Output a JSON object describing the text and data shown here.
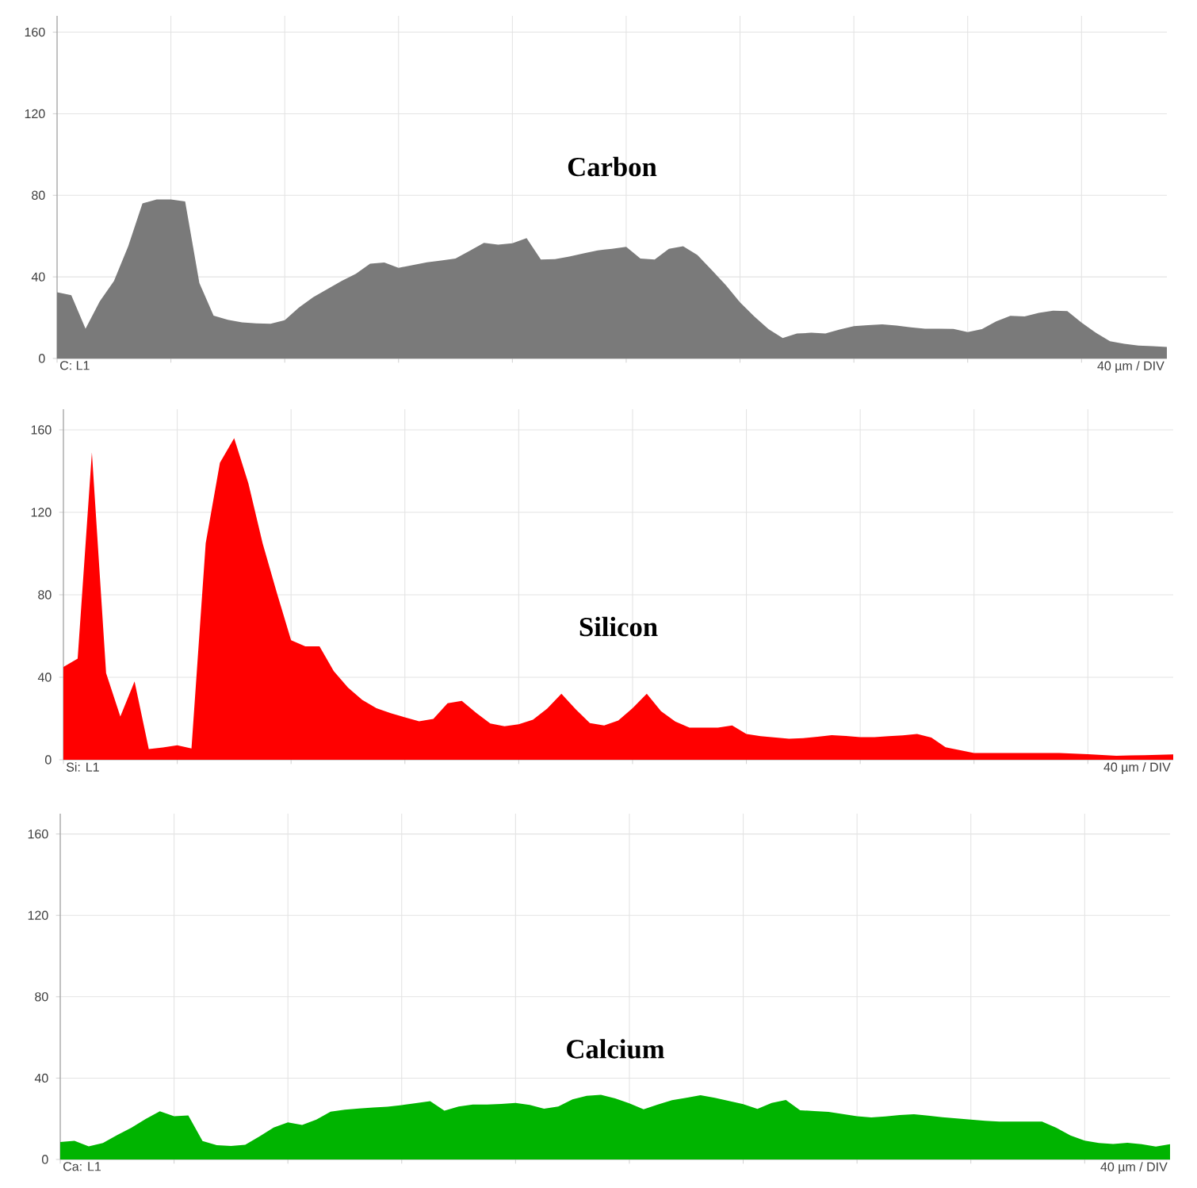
{
  "chart_data": [
    {
      "type": "area",
      "title": "Carbon",
      "color": "#7a7a7a",
      "ylim": [
        0,
        168
      ],
      "grid": true,
      "tick_labels": "y",
      "yticks": [
        0,
        40,
        80,
        120,
        160
      ],
      "annotations": [
        "C: L1",
        "40 µm / DIV"
      ],
      "categories": [
        null,
        null,
        null,
        null,
        null,
        null,
        null,
        null,
        null,
        null,
        null,
        null,
        null,
        null,
        null,
        null,
        null,
        null,
        null,
        null,
        null,
        null,
        null,
        null,
        null,
        null,
        null,
        null,
        null,
        null,
        null,
        null,
        null,
        null,
        null,
        null,
        null,
        null,
        null,
        null,
        null,
        null,
        null,
        null,
        null,
        null,
        null,
        null,
        null,
        null,
        null,
        null,
        null,
        null,
        null,
        null,
        null,
        null,
        null,
        null,
        null,
        null,
        null,
        null,
        null,
        null,
        null,
        null,
        null,
        null,
        null,
        null,
        null,
        null,
        null,
        null,
        null,
        null,
        null
      ],
      "values": [
        32.5,
        31,
        14.6,
        28,
        38,
        55,
        76,
        78,
        78,
        77,
        37,
        21,
        19,
        17.7,
        17.2,
        17,
        18.8,
        25,
        30,
        34,
        38,
        41.5,
        46.5,
        47,
        44.4,
        45.8,
        47.1,
        48,
        49,
        52.8,
        56.7,
        55.8,
        56.5,
        59,
        48.5,
        48.7,
        50,
        51.5,
        53,
        53.8,
        54.7,
        49,
        48.5,
        53.8,
        55,
        50.7,
        43.5,
        36,
        27.5,
        20.6,
        14.4,
        10,
        12.2,
        12.6,
        12.2,
        14.2,
        15.8,
        16.3,
        16.7,
        16.1,
        15.3,
        14.6,
        14.6,
        14.5,
        12.9,
        14.4,
        18.2,
        20.9,
        20.6,
        22.4,
        23.4,
        23.2,
        17.6,
        12.6,
        8.5,
        7.2,
        6.3,
        6.0,
        5.6
      ]
    },
    {
      "type": "area",
      "title": "Silicon",
      "color": "#ff0000",
      "ylim": [
        0,
        170
      ],
      "grid": true,
      "tick_labels": "y",
      "yticks": [
        0,
        40,
        80,
        120,
        160
      ],
      "annotations": [
        "Si: L1",
        "40 µm / DIV"
      ],
      "categories": [
        null,
        null,
        null,
        null,
        null,
        null,
        null,
        null,
        null,
        null,
        null,
        null,
        null,
        null,
        null,
        null,
        null,
        null,
        null,
        null,
        null,
        null,
        null,
        null,
        null,
        null,
        null,
        null,
        null,
        null,
        null,
        null,
        null,
        null,
        null,
        null,
        null,
        null,
        null,
        null,
        null,
        null,
        null,
        null,
        null,
        null,
        null,
        null,
        null,
        null,
        null,
        null,
        null,
        null,
        null,
        null,
        null,
        null,
        null,
        null,
        null,
        null,
        null,
        null,
        null,
        null,
        null,
        null,
        null,
        null,
        null,
        null,
        null,
        null,
        null,
        null,
        null,
        null,
        null
      ],
      "values": [
        45,
        49,
        149,
        42,
        21,
        38,
        5.2,
        6,
        7,
        5.5,
        105,
        144,
        156,
        134,
        105,
        81,
        58,
        55,
        55,
        43,
        35,
        29,
        25,
        22.6,
        20.6,
        18.7,
        19.8,
        27.4,
        28.6,
        22.8,
        17.6,
        16.2,
        17.2,
        19.4,
        24.8,
        32,
        24.5,
        17.8,
        16.6,
        19,
        25,
        32,
        23.6,
        18.6,
        15.6,
        15.6,
        15.6,
        16.6,
        12.5,
        11.4,
        10.8,
        10.2,
        10.5,
        11.2,
        11.9,
        11.5,
        11,
        11,
        11.4,
        11.8,
        12.5,
        10.8,
        6.1,
        4.7,
        3.3,
        3.3,
        3.3,
        3.3,
        3.3,
        3.3,
        3.3,
        3.0,
        2.7,
        2.3,
        1.9,
        2.1,
        2.2,
        2.4,
        2.6
      ]
    },
    {
      "type": "area",
      "title": "Calcium",
      "color": "#00b400",
      "ylim": [
        0,
        170
      ],
      "grid": true,
      "tick_labels": "y",
      "yticks": [
        0,
        40,
        80,
        120,
        160
      ],
      "annotations": [
        "Ca: L1",
        "40 µm / DIV"
      ],
      "categories": [
        null,
        null,
        null,
        null,
        null,
        null,
        null,
        null,
        null,
        null,
        null,
        null,
        null,
        null,
        null,
        null,
        null,
        null,
        null,
        null,
        null,
        null,
        null,
        null,
        null,
        null,
        null,
        null,
        null,
        null,
        null,
        null,
        null,
        null,
        null,
        null,
        null,
        null,
        null,
        null,
        null,
        null,
        null,
        null,
        null,
        null,
        null,
        null,
        null,
        null,
        null,
        null,
        null,
        null,
        null,
        null,
        null,
        null,
        null,
        null,
        null,
        null,
        null,
        null,
        null,
        null,
        null,
        null,
        null,
        null,
        null,
        null,
        null,
        null,
        null,
        null,
        null,
        null,
        null
      ],
      "values": [
        8.6,
        9.2,
        6.4,
        8.1,
        12,
        15.6,
        19.9,
        23.7,
        21.3,
        21.6,
        9.1,
        7,
        6.6,
        7.2,
        11.3,
        15.7,
        18.2,
        17,
        19.6,
        23.5,
        24.5,
        25.1,
        25.5,
        25.9,
        26.7,
        27.7,
        28.7,
        24,
        26,
        27,
        27,
        27.3,
        27.8,
        26.8,
        25,
        26,
        29.5,
        31.3,
        31.8,
        30,
        27.6,
        24.7,
        27,
        29.1,
        30.3,
        31.6,
        30.3,
        28.8,
        27.2,
        24.9,
        27.8,
        29.2,
        24.2,
        23.8,
        23.4,
        22.3,
        21.3,
        20.7,
        21.2,
        21.8,
        22.2,
        21.5,
        20.8,
        20.2,
        19.6,
        19,
        18.6,
        18.6,
        18.6,
        18.6,
        15.6,
        11.8,
        9.3,
        8.1,
        7.6,
        8.2,
        7.5,
        6.3,
        7.5
      ]
    }
  ]
}
